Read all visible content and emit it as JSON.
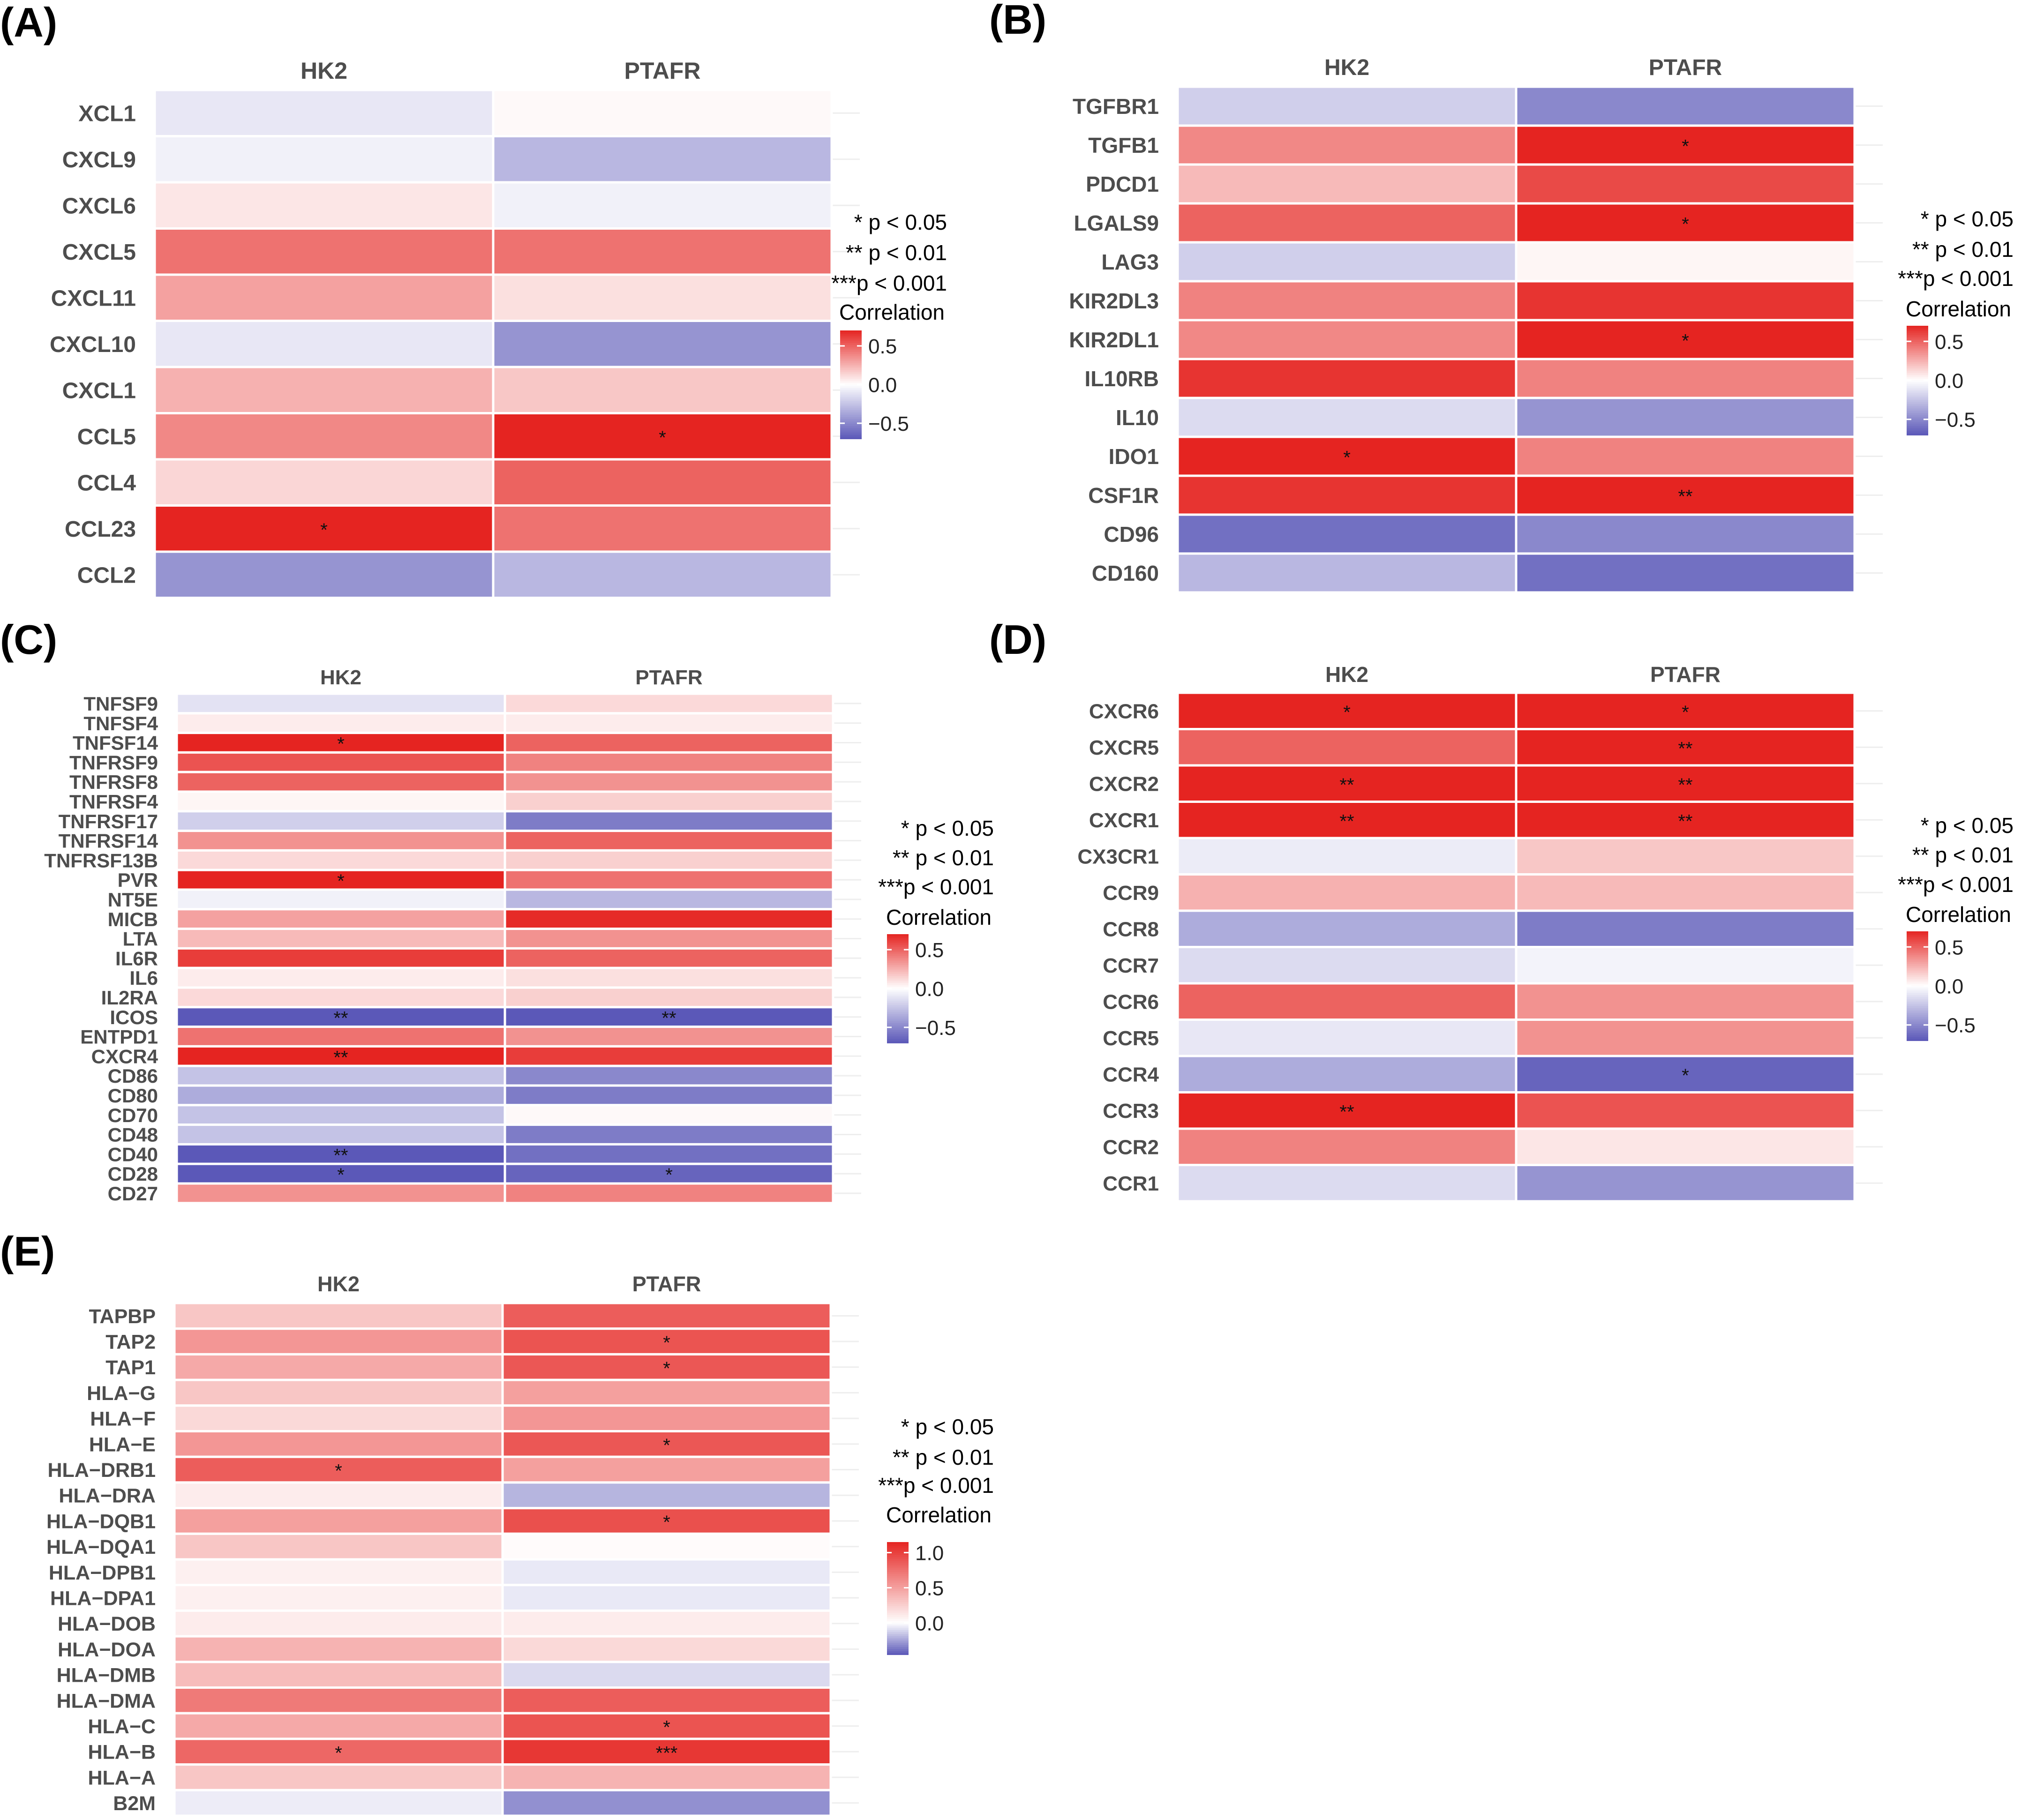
{
  "figure": {
    "colors": {
      "high": "#e52421",
      "mid": "#ffffff",
      "low": "#5b58b8",
      "grid": "#eeeeee",
      "text": "#4d4d4d"
    }
  },
  "chart_data": [
    {
      "type": "heatmap",
      "panel_label": "(A)",
      "columns": [
        "HK2",
        "PTAFR"
      ],
      "rows": [
        "XCL1",
        "CXCL9",
        "CXCL6",
        "CXCL5",
        "CXCL11",
        "CXCL10",
        "CXCL1",
        "CCL5",
        "CCL4",
        "CCL23",
        "CCL2"
      ],
      "values": [
        [
          -0.1,
          0.02
        ],
        [
          -0.06,
          -0.3
        ],
        [
          0.08,
          -0.06
        ],
        [
          0.45,
          0.45
        ],
        [
          0.3,
          0.1
        ],
        [
          -0.1,
          -0.45
        ],
        [
          0.25,
          0.18
        ],
        [
          0.38,
          0.7
        ],
        [
          0.13,
          0.5
        ],
        [
          0.82,
          0.45
        ],
        [
          -0.45,
          -0.3
        ]
      ],
      "significance": [
        [
          "",
          ""
        ],
        [
          "",
          ""
        ],
        [
          "",
          ""
        ],
        [
          "",
          ""
        ],
        [
          "",
          ""
        ],
        [
          "",
          ""
        ],
        [
          "",
          ""
        ],
        [
          "",
          "*"
        ],
        [
          "",
          ""
        ],
        [
          "*",
          ""
        ],
        [
          "",
          ""
        ]
      ],
      "legend": {
        "sig_labels": [
          "* p < 0.05",
          "** p < 0.01",
          "***p < 0.001"
        ],
        "title": "Correlation",
        "ticks": [
          0.5,
          0.0,
          -0.5
        ],
        "tick_labels": [
          "0.5",
          "0.0",
          "−0.5"
        ],
        "range": [
          -0.7,
          0.7
        ]
      }
    },
    {
      "type": "heatmap",
      "panel_label": "(B)",
      "columns": [
        "HK2",
        "PTAFR"
      ],
      "rows": [
        "TGFBR1",
        "TGFB1",
        "PDCD1",
        "LGALS9",
        "LAG3",
        "KIR2DL3",
        "KIR2DL1",
        "IL10RB",
        "IL10",
        "IDO1",
        "CSF1R",
        "CD96",
        "CD160"
      ],
      "values": [
        [
          -0.2,
          -0.5
        ],
        [
          0.38,
          0.72
        ],
        [
          0.22,
          0.58
        ],
        [
          0.5,
          0.78
        ],
        [
          -0.2,
          0.03
        ],
        [
          0.4,
          0.65
        ],
        [
          0.38,
          0.72
        ],
        [
          0.65,
          0.4
        ],
        [
          -0.15,
          -0.45
        ],
        [
          0.7,
          0.4
        ],
        [
          0.65,
          0.85
        ],
        [
          -0.6,
          -0.5
        ],
        [
          -0.3,
          -0.6
        ]
      ],
      "significance": [
        [
          "",
          ""
        ],
        [
          "",
          "*"
        ],
        [
          "",
          ""
        ],
        [
          "",
          "*"
        ],
        [
          "",
          ""
        ],
        [
          "",
          ""
        ],
        [
          "",
          "*"
        ],
        [
          "",
          ""
        ],
        [
          "",
          ""
        ],
        [
          "*",
          ""
        ],
        [
          "",
          "**"
        ],
        [
          "",
          ""
        ],
        [
          "",
          ""
        ]
      ],
      "legend": {
        "sig_labels": [
          "* p < 0.05",
          "** p < 0.01",
          "***p < 0.001"
        ],
        "title": "Correlation",
        "ticks": [
          0.5,
          0.0,
          -0.5
        ],
        "tick_labels": [
          "0.5",
          "0.0",
          "−0.5"
        ],
        "range": [
          -0.7,
          0.7
        ]
      }
    },
    {
      "type": "heatmap",
      "panel_label": "(C)",
      "columns": [
        "HK2",
        "PTAFR"
      ],
      "rows": [
        "TNFSF9",
        "TNFSF4",
        "TNFSF14",
        "TNFRSF9",
        "TNFRSF8",
        "TNFRSF4",
        "TNFRSF17",
        "TNFRSF14",
        "TNFRSF13B",
        "PVR",
        "NT5E",
        "MICB",
        "LTA",
        "IL6R",
        "IL6",
        "IL2RA",
        "ICOS",
        "ENTPD1",
        "CXCR4",
        "CD86",
        "CD80",
        "CD70",
        "CD48",
        "CD40",
        "CD28",
        "CD27"
      ],
      "values": [
        [
          -0.12,
          0.12
        ],
        [
          0.06,
          0.06
        ],
        [
          0.75,
          0.5
        ],
        [
          0.55,
          0.4
        ],
        [
          0.5,
          0.35
        ],
        [
          0.03,
          0.15
        ],
        [
          -0.2,
          -0.55
        ],
        [
          0.35,
          0.5
        ],
        [
          0.12,
          0.15
        ],
        [
          0.72,
          0.45
        ],
        [
          -0.06,
          -0.3
        ],
        [
          0.3,
          0.68
        ],
        [
          0.22,
          0.35
        ],
        [
          0.62,
          0.5
        ],
        [
          0.06,
          0.1
        ],
        [
          0.12,
          0.15
        ],
        [
          -0.72,
          -0.75
        ],
        [
          0.45,
          0.35
        ],
        [
          0.85,
          0.62
        ],
        [
          -0.25,
          -0.5
        ],
        [
          -0.35,
          -0.55
        ],
        [
          -0.25,
          0.02
        ],
        [
          -0.25,
          -0.55
        ],
        [
          -0.72,
          -0.6
        ],
        [
          -0.72,
          -0.65
        ],
        [
          0.35,
          0.4
        ]
      ],
      "significance": [
        [
          "",
          ""
        ],
        [
          "",
          ""
        ],
        [
          "*",
          ""
        ],
        [
          "",
          ""
        ],
        [
          "",
          ""
        ],
        [
          "",
          ""
        ],
        [
          "",
          ""
        ],
        [
          "",
          ""
        ],
        [
          "",
          ""
        ],
        [
          "*",
          ""
        ],
        [
          "",
          ""
        ],
        [
          "",
          ""
        ],
        [
          "",
          ""
        ],
        [
          "",
          ""
        ],
        [
          "",
          ""
        ],
        [
          "",
          ""
        ],
        [
          "**",
          "**"
        ],
        [
          "",
          ""
        ],
        [
          "**",
          ""
        ],
        [
          "",
          ""
        ],
        [
          "",
          ""
        ],
        [
          "",
          ""
        ],
        [
          "",
          ""
        ],
        [
          "**",
          ""
        ],
        [
          "*",
          "*"
        ],
        [
          "",
          ""
        ]
      ],
      "legend": {
        "sig_labels": [
          "* p < 0.05",
          "** p < 0.01",
          "***p < 0.001"
        ],
        "title": "Correlation",
        "ticks": [
          0.5,
          0.0,
          -0.5
        ],
        "tick_labels": [
          "0.5",
          "0.0",
          "−0.5"
        ],
        "range": [
          -0.7,
          0.7
        ]
      }
    },
    {
      "type": "heatmap",
      "panel_label": "(D)",
      "columns": [
        "HK2",
        "PTAFR"
      ],
      "rows": [
        "CXCR6",
        "CXCR5",
        "CXCR2",
        "CXCR1",
        "CX3CR1",
        "CCR9",
        "CCR8",
        "CCR7",
        "CCR6",
        "CCR5",
        "CCR4",
        "CCR3",
        "CCR2",
        "CCR1"
      ],
      "values": [
        [
          0.7,
          0.7
        ],
        [
          0.5,
          0.85
        ],
        [
          0.88,
          0.88
        ],
        [
          0.88,
          0.88
        ],
        [
          -0.08,
          0.18
        ],
        [
          0.25,
          0.22
        ],
        [
          -0.35,
          -0.55
        ],
        [
          -0.15,
          -0.05
        ],
        [
          0.5,
          0.35
        ],
        [
          -0.1,
          0.35
        ],
        [
          -0.35,
          -0.65
        ],
        [
          0.85,
          0.55
        ],
        [
          0.4,
          0.08
        ],
        [
          -0.15,
          -0.45
        ]
      ],
      "significance": [
        [
          "*",
          "*"
        ],
        [
          "",
          "**"
        ],
        [
          "**",
          "**"
        ],
        [
          "**",
          "**"
        ],
        [
          "",
          ""
        ],
        [
          "",
          ""
        ],
        [
          "",
          ""
        ],
        [
          "",
          ""
        ],
        [
          "",
          ""
        ],
        [
          "",
          ""
        ],
        [
          "",
          "*"
        ],
        [
          "**",
          ""
        ],
        [
          "",
          ""
        ],
        [
          "",
          ""
        ]
      ],
      "legend": {
        "sig_labels": [
          "* p < 0.05",
          "** p < 0.01",
          "***p < 0.001"
        ],
        "title": "Correlation",
        "ticks": [
          0.5,
          0.0,
          -0.5
        ],
        "tick_labels": [
          "0.5",
          "0.0",
          "−0.5"
        ],
        "range": [
          -0.7,
          0.7
        ]
      }
    },
    {
      "type": "heatmap",
      "panel_label": "(E)",
      "columns": [
        "HK2",
        "PTAFR"
      ],
      "rows": [
        "TAPBP",
        "TAP2",
        "TAP1",
        "HLA−G",
        "HLA−F",
        "HLA−E",
        "HLA−DRB1",
        "HLA−DRA",
        "HLA−DQB1",
        "HLA−DQA1",
        "HLA−DPB1",
        "HLA−DPA1",
        "HLA−DOB",
        "HLA−DOA",
        "HLA−DMB",
        "HLA−DMA",
        "HLA−C",
        "HLA−B",
        "HLA−A",
        "B2M"
      ],
      "values": [
        [
          0.3,
          0.85
        ],
        [
          0.55,
          0.9
        ],
        [
          0.45,
          0.88
        ],
        [
          0.3,
          0.5
        ],
        [
          0.2,
          0.55
        ],
        [
          0.55,
          0.88
        ],
        [
          0.85,
          0.5
        ],
        [
          0.1,
          -0.2
        ],
        [
          0.5,
          0.92
        ],
        [
          0.3,
          0.02
        ],
        [
          0.08,
          -0.06
        ],
        [
          0.08,
          -0.06
        ],
        [
          0.1,
          0.1
        ],
        [
          0.4,
          0.2
        ],
        [
          0.35,
          -0.1
        ],
        [
          0.7,
          0.85
        ],
        [
          0.45,
          0.9
        ],
        [
          0.8,
          1.05
        ],
        [
          0.3,
          0.4
        ],
        [
          -0.05,
          -0.3
        ]
      ],
      "significance": [
        [
          "",
          ""
        ],
        [
          "",
          "*"
        ],
        [
          "",
          "*"
        ],
        [
          "",
          ""
        ],
        [
          "",
          ""
        ],
        [
          "",
          "*"
        ],
        [
          "*",
          ""
        ],
        [
          "",
          ""
        ],
        [
          "",
          "*"
        ],
        [
          "",
          ""
        ],
        [
          "",
          ""
        ],
        [
          "",
          ""
        ],
        [
          "",
          ""
        ],
        [
          "",
          ""
        ],
        [
          "",
          ""
        ],
        [
          "",
          ""
        ],
        [
          "",
          "*"
        ],
        [
          "*",
          "***"
        ],
        [
          "",
          ""
        ],
        [
          "",
          ""
        ]
      ],
      "legend": {
        "sig_labels": [
          "* p < 0.05",
          "** p < 0.01",
          "***p < 0.001"
        ],
        "title": "Correlation",
        "ticks": [
          1.0,
          0.5,
          0.0
        ],
        "tick_labels": [
          "1.0",
          "0.5",
          "0.0"
        ],
        "range": [
          -0.45,
          1.15
        ]
      }
    }
  ]
}
